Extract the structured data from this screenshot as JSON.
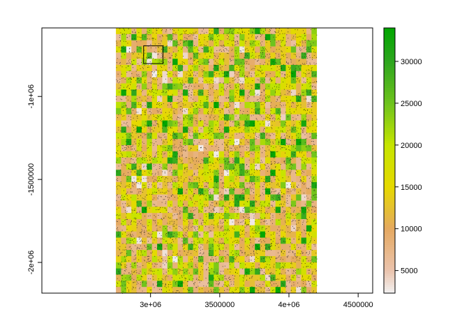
{
  "chart_data": {
    "type": "heatmap",
    "title": "",
    "xlabel": "",
    "ylabel": "",
    "xlim": [
      2215000,
      4605000
    ],
    "ylim": [
      -2185000,
      -587000
    ],
    "raster_extent": {
      "x": [
        2750000,
        4200000
      ],
      "y": [
        -2185000,
        -587000
      ]
    },
    "grid_cols": 39,
    "grid_rows": 43,
    "x_ticks": [
      {
        "value": 3000000,
        "label": "3e+06"
      },
      {
        "value": 3500000,
        "label": "3500000"
      },
      {
        "value": 4000000,
        "label": "4e+06"
      },
      {
        "value": 4500000,
        "label": "4500000"
      }
    ],
    "y_ticks": [
      {
        "value": -1000000,
        "label": "-1e+06"
      },
      {
        "value": -1500000,
        "label": "-1500000"
      },
      {
        "value": -2000000,
        "label": "-2e+06"
      }
    ],
    "color_scale": {
      "range": [
        2300,
        34000
      ],
      "stops": [
        {
          "value": 2300,
          "color": "#f2f2f2"
        },
        {
          "value": 5000,
          "color": "#ebc4ae"
        },
        {
          "value": 10000,
          "color": "#e5a961"
        },
        {
          "value": 15000,
          "color": "#e6d900"
        },
        {
          "value": 20000,
          "color": "#c6e500"
        },
        {
          "value": 25000,
          "color": "#6ec31d"
        },
        {
          "value": 30000,
          "color": "#2ea61e"
        },
        {
          "value": 34000,
          "color": "#00a600"
        }
      ]
    },
    "legend_ticks": [
      {
        "value": 5000,
        "label": "5000"
      },
      {
        "value": 10000,
        "label": "10000"
      },
      {
        "value": 15000,
        "label": "15000"
      },
      {
        "value": 20000,
        "label": "20000"
      },
      {
        "value": 25000,
        "label": "25000"
      },
      {
        "value": 30000,
        "label": "30000"
      }
    ],
    "highlight_box": {
      "x": [
        2950000,
        3090000
      ],
      "y": [
        -802000,
        -695000
      ]
    },
    "points_overlay": true,
    "legend_position": "right"
  }
}
